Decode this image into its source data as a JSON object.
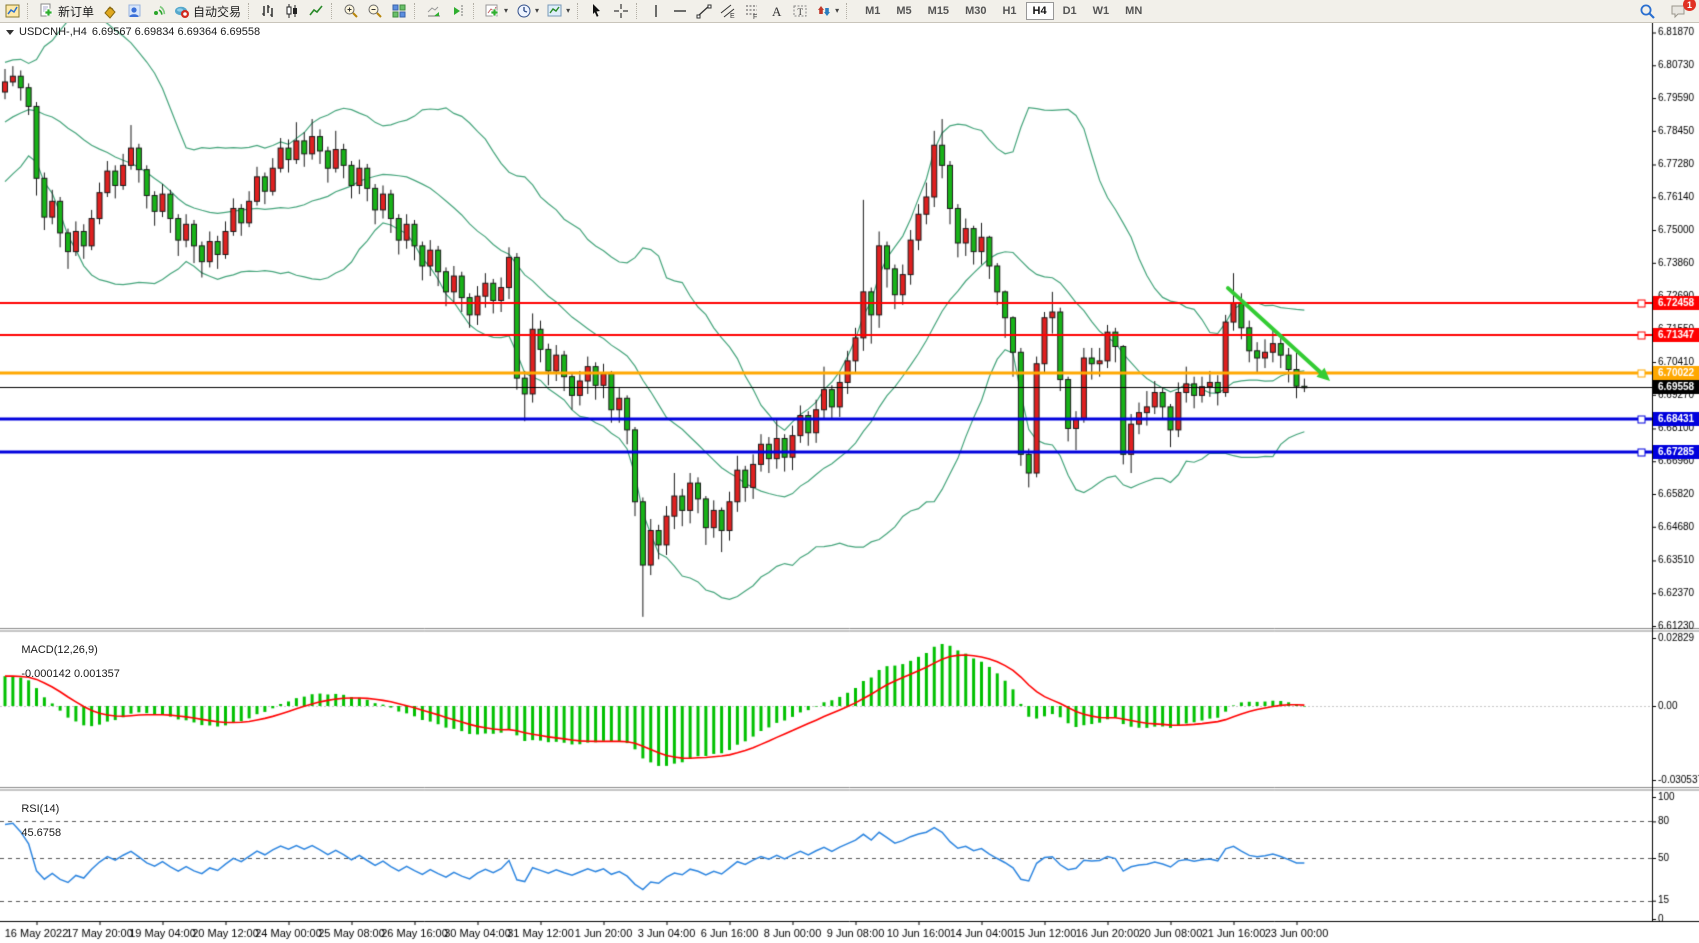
{
  "toolbar": {
    "new_order_label": "新订单",
    "autotrade_label": "自动交易",
    "timeframes": [
      "M1",
      "M5",
      "M15",
      "M30",
      "H1",
      "H4",
      "D1",
      "W1",
      "MN"
    ],
    "active_timeframe": "H4",
    "notification_count": "1",
    "icons": [
      "chart-window-icon",
      "new-order-icon",
      "styler-icon",
      "community-icon",
      "signals-icon",
      "autotrading-icon",
      "bar-chart-icon",
      "candlestick-icon",
      "line-chart-icon",
      "zoom-in-icon",
      "zoom-out-icon",
      "tile-windows-icon",
      "auto-scroll-icon",
      "chart-shift-icon",
      "indicators-icon",
      "periods-icon",
      "templates-icon",
      "cursor-icon",
      "crosshair-icon",
      "vertical-line-icon",
      "horizontal-line-icon",
      "trendline-icon",
      "equidistant-channel-icon",
      "fibonacci-icon",
      "text-icon",
      "text-label-icon",
      "arrows-icon",
      "search-icon",
      "chat-icon"
    ]
  },
  "chart_header": {
    "symbol_line": "USDCNH-,H4",
    "ohlc_line": "6.69567 6.69834 6.69364 6.69558"
  },
  "macd_panel": {
    "title": "MACD(12,26,9)",
    "values": "-0.000142 0.001357"
  },
  "rsi_panel": {
    "title": "RSI(14)",
    "value": "45.6758"
  },
  "chart_data": [
    {
      "type": "candlestick",
      "symbol": "USDCNH-",
      "timeframe": "H4",
      "ohlc_display": {
        "open": "6.69567",
        "high": "6.69834",
        "low": "6.69364",
        "close": "6.69558"
      },
      "ylim": [
        6.6123,
        6.8187
      ],
      "y_ticks": [
        "6.81870",
        "6.80730",
        "6.79590",
        "6.78450",
        "6.77280",
        "6.76140",
        "6.75000",
        "6.73860",
        "6.72690",
        "6.71550",
        "6.70410",
        "6.69270",
        "6.68100",
        "6.66960",
        "6.65820",
        "6.64680",
        "6.63510",
        "6.62370",
        "6.61230"
      ],
      "x_labels": [
        "16 May 2022",
        "17 May 20:00",
        "19 May 04:00",
        "20 May 12:00",
        "24 May 00:00",
        "25 May 08:00",
        "26 May 16:00",
        "30 May 04:00",
        "31 May 12:00",
        "1 Jun 20:00",
        "3 Jun 04:00",
        "6 Jun 16:00",
        "8 Jun 00:00",
        "9 Jun 08:00",
        "10 Jun 16:00",
        "14 Jun 04:00",
        "15 Jun 12:00",
        "16 Jun 20:00",
        "20 Jun 08:00",
        "21 Jun 16:00",
        "23 Jun 00:00"
      ],
      "bars_per_label": 8,
      "first_label_bar": 4,
      "colors": {
        "up": "#e02020",
        "down": "#18b318",
        "wick": "#1a1a1a"
      },
      "bollinger": {
        "period": 20,
        "deviation": 2,
        "color": "#46a57c"
      },
      "hlines": [
        {
          "price": 6.72458,
          "color": "#ff0000",
          "label": "6.72458",
          "width": 2
        },
        {
          "price": 6.71347,
          "color": "#ff0000",
          "label": "6.71347",
          "width": 2
        },
        {
          "price": 6.70022,
          "color": "#ffa800",
          "label": "6.70022",
          "width": 3
        },
        {
          "price": 6.68431,
          "color": "#0000dd",
          "label": "6.68431",
          "width": 3
        },
        {
          "price": 6.67285,
          "color": "#0000dd",
          "label": "6.67285",
          "width": 3
        }
      ],
      "current_price": {
        "value": 6.69558,
        "label": "6.69558",
        "color": "#000000"
      },
      "trend_arrow": {
        "from_bar": 155.3,
        "from_price": 6.7298,
        "to_bar": 167.7,
        "to_price": 6.6989,
        "color": "#33cc33",
        "width": 4
      },
      "prehistory_closes": [
        6.742,
        6.745,
        6.748,
        6.7455,
        6.751,
        6.7545,
        6.758,
        6.7555,
        6.761,
        6.7655,
        6.7625,
        6.768,
        6.7725,
        6.77,
        6.7755,
        6.78,
        6.7775,
        6.783,
        6.787,
        6.7845,
        6.789,
        6.7925,
        6.79,
        6.7945,
        6.797,
        6.795,
        6.7985,
        6.8,
        6.7975,
        6.798
      ],
      "candles": [
        [
          6.798,
          6.806,
          6.7955,
          6.8015
        ],
        [
          6.8015,
          6.807,
          6.8,
          6.8035
        ],
        [
          6.8035,
          6.8055,
          6.795,
          6.7995
        ],
        [
          6.7995,
          6.801,
          6.79,
          6.793
        ],
        [
          6.793,
          6.7945,
          6.762,
          6.768
        ],
        [
          6.768,
          6.77,
          6.75,
          6.7545
        ],
        [
          6.7545,
          6.764,
          6.752,
          6.76
        ],
        [
          6.76,
          6.7615,
          6.744,
          6.749
        ],
        [
          6.749,
          6.7505,
          6.7365,
          6.7425
        ],
        [
          6.7425,
          6.753,
          6.741,
          6.7495
        ],
        [
          6.7495,
          6.752,
          6.74,
          6.7445
        ],
        [
          6.7445,
          6.757,
          6.743,
          6.754
        ],
        [
          6.754,
          6.7665,
          6.752,
          6.763
        ],
        [
          6.763,
          6.774,
          6.7615,
          6.7705
        ],
        [
          6.7705,
          6.7725,
          6.761,
          6.7655
        ],
        [
          6.7655,
          6.7765,
          6.764,
          6.7725
        ],
        [
          6.7725,
          6.7865,
          6.771,
          6.7785
        ],
        [
          6.7785,
          6.78,
          6.7665,
          6.771
        ],
        [
          6.771,
          6.7725,
          6.7575,
          6.762
        ],
        [
          6.762,
          6.7635,
          6.7515,
          6.7565
        ],
        [
          6.7565,
          6.766,
          6.7545,
          6.7625
        ],
        [
          6.7625,
          6.764,
          6.749,
          6.754
        ],
        [
          6.754,
          6.7555,
          6.741,
          6.7465
        ],
        [
          6.7465,
          6.7555,
          6.744,
          6.752
        ],
        [
          6.752,
          6.7535,
          6.7385,
          6.7445
        ],
        [
          6.7445,
          6.746,
          6.7335,
          6.739
        ],
        [
          6.739,
          6.7495,
          6.737,
          6.746
        ],
        [
          6.746,
          6.748,
          6.7365,
          6.7415
        ],
        [
          6.7415,
          6.753,
          6.74,
          6.7495
        ],
        [
          6.7495,
          6.761,
          6.748,
          6.7575
        ],
        [
          6.7575,
          6.759,
          6.748,
          6.7525
        ],
        [
          6.7525,
          6.7635,
          6.751,
          6.76
        ],
        [
          6.76,
          6.772,
          6.7585,
          6.7685
        ],
        [
          6.7685,
          6.77,
          6.759,
          6.7635
        ],
        [
          6.7635,
          6.775,
          6.762,
          6.7715
        ],
        [
          6.7715,
          6.782,
          6.77,
          6.7785
        ],
        [
          6.7785,
          6.7815,
          6.77,
          6.7745
        ],
        [
          6.7745,
          6.7875,
          6.773,
          6.781
        ],
        [
          6.781,
          6.784,
          6.772,
          6.7765
        ],
        [
          6.7765,
          6.7886,
          6.7745,
          6.7825
        ],
        [
          6.7825,
          6.785,
          6.773,
          6.7775
        ],
        [
          6.7775,
          6.779,
          6.7665,
          6.7715
        ],
        [
          6.7715,
          6.7845,
          6.77,
          6.778
        ],
        [
          6.778,
          6.78,
          6.768,
          6.7725
        ],
        [
          6.7725,
          6.774,
          6.761,
          6.7655
        ],
        [
          6.7655,
          6.7745,
          6.7625,
          6.7715
        ],
        [
          6.7715,
          6.773,
          6.76,
          6.7645
        ],
        [
          6.7645,
          6.766,
          6.752,
          6.757
        ],
        [
          6.757,
          6.7655,
          6.754,
          6.7625
        ],
        [
          6.7625,
          6.764,
          6.749,
          6.754
        ],
        [
          6.754,
          6.7555,
          6.7415,
          6.7465
        ],
        [
          6.7465,
          6.7555,
          6.7435,
          6.752
        ],
        [
          6.752,
          6.7535,
          6.7395,
          6.7445
        ],
        [
          6.7445,
          6.746,
          6.7325,
          6.7375
        ],
        [
          6.7375,
          6.7465,
          6.734,
          6.743
        ],
        [
          6.743,
          6.7445,
          6.7305,
          6.7355
        ],
        [
          6.7355,
          6.737,
          6.7235,
          6.7285
        ],
        [
          6.7285,
          6.7375,
          6.725,
          6.734
        ],
        [
          6.734,
          6.7355,
          6.7215,
          6.7265
        ],
        [
          6.7265,
          6.728,
          6.716,
          6.7205
        ],
        [
          6.7205,
          6.7305,
          6.717,
          6.727
        ],
        [
          6.727,
          6.735,
          6.723,
          6.7315
        ],
        [
          6.7315,
          6.733,
          6.721,
          6.7255
        ],
        [
          6.7255,
          6.7335,
          6.7215,
          6.73
        ],
        [
          6.73,
          6.744,
          6.726,
          6.7405
        ],
        [
          6.7405,
          6.742,
          6.6945,
          6.6985
        ],
        [
          6.6985,
          6.701,
          6.6835,
          6.693
        ],
        [
          6.693,
          6.721,
          6.69,
          6.7155
        ],
        [
          6.7155,
          6.7185,
          6.704,
          6.7085
        ],
        [
          6.7085,
          6.7105,
          6.696,
          6.701
        ],
        [
          6.701,
          6.71,
          6.6975,
          6.7065
        ],
        [
          6.7065,
          6.708,
          6.694,
          6.699
        ],
        [
          6.699,
          6.7005,
          6.6875,
          6.6925
        ],
        [
          6.6925,
          6.701,
          6.689,
          6.6975
        ],
        [
          6.6975,
          6.706,
          6.693,
          6.7025
        ],
        [
          6.7025,
          6.704,
          6.691,
          6.696
        ],
        [
          6.696,
          6.7035,
          6.6915,
          6.7
        ],
        [
          6.7,
          6.701,
          6.683,
          6.6875
        ],
        [
          6.6875,
          6.695,
          6.683,
          6.6915
        ],
        [
          6.6915,
          6.6925,
          6.6755,
          6.6805
        ],
        [
          6.6805,
          6.6815,
          6.6505,
          6.6555
        ],
        [
          6.6555,
          6.657,
          6.6155,
          6.6335
        ],
        [
          6.6335,
          6.6495,
          6.63,
          6.6455
        ],
        [
          6.6455,
          6.6475,
          6.6355,
          6.6405
        ],
        [
          6.6405,
          6.654,
          6.637,
          6.6505
        ],
        [
          6.6505,
          6.6655,
          6.646,
          6.6575
        ],
        [
          6.6575,
          6.66,
          6.647,
          6.6525
        ],
        [
          6.6525,
          6.6655,
          6.648,
          6.662
        ],
        [
          6.662,
          6.664,
          6.6515,
          6.6565
        ],
        [
          6.6565,
          6.6575,
          6.6405,
          6.6465
        ],
        [
          6.6465,
          6.656,
          6.643,
          6.6525
        ],
        [
          6.6525,
          6.6535,
          6.638,
          6.6455
        ],
        [
          6.6455,
          6.659,
          6.642,
          6.6555
        ],
        [
          6.6555,
          6.6715,
          6.652,
          6.6665
        ],
        [
          6.6665,
          6.668,
          6.6555,
          6.6605
        ],
        [
          6.6605,
          6.672,
          6.6565,
          6.6685
        ],
        [
          6.6685,
          6.679,
          6.666,
          6.6755
        ],
        [
          6.6755,
          6.678,
          6.6655,
          6.6705
        ],
        [
          6.6705,
          6.6845,
          6.667,
          6.6775
        ],
        [
          6.6775,
          6.679,
          6.666,
          6.671
        ],
        [
          6.671,
          6.682,
          6.6665,
          6.6785
        ],
        [
          6.6785,
          6.689,
          6.676,
          6.6855
        ],
        [
          6.6855,
          6.687,
          6.675,
          6.6795
        ],
        [
          6.6795,
          6.691,
          6.676,
          6.6875
        ],
        [
          6.6875,
          6.7025,
          6.684,
          6.6945
        ],
        [
          6.6945,
          6.696,
          6.684,
          6.6885
        ],
        [
          6.6885,
          6.7005,
          6.685,
          6.697
        ],
        [
          6.697,
          6.708,
          6.693,
          6.7045
        ],
        [
          6.7045,
          6.716,
          6.7,
          6.7125
        ],
        [
          6.7125,
          6.7605,
          6.708,
          6.7285
        ],
        [
          6.7285,
          6.73,
          6.7105,
          6.7205
        ],
        [
          6.7205,
          6.7495,
          6.716,
          6.7445
        ],
        [
          6.7445,
          6.746,
          6.73,
          6.7365
        ],
        [
          6.7365,
          6.738,
          6.7225,
          6.7275
        ],
        [
          6.7275,
          6.738,
          6.724,
          6.7345
        ],
        [
          6.7345,
          6.75,
          6.731,
          6.7465
        ],
        [
          6.7465,
          6.759,
          6.743,
          6.7555
        ],
        [
          6.7555,
          6.7665,
          6.752,
          6.7615
        ],
        [
          6.7615,
          6.7845,
          6.758,
          6.7795
        ],
        [
          6.7795,
          6.7886,
          6.768,
          6.7725
        ],
        [
          6.7725,
          6.774,
          6.752,
          6.7575
        ],
        [
          6.7575,
          6.759,
          6.7405,
          6.7455
        ],
        [
          6.7455,
          6.754,
          6.741,
          6.7505
        ],
        [
          6.7505,
          6.7515,
          6.738,
          6.7425
        ],
        [
          6.7425,
          6.7525,
          6.738,
          6.7475
        ],
        [
          6.7475,
          6.748,
          6.733,
          6.7375
        ],
        [
          6.7375,
          6.7385,
          6.724,
          6.7285
        ],
        [
          6.7285,
          6.729,
          6.7125,
          6.7195
        ],
        [
          6.7195,
          6.72,
          6.699,
          6.7075
        ],
        [
          6.7075,
          6.709,
          6.668,
          6.672
        ],
        [
          6.672,
          6.674,
          6.6605,
          6.6655
        ],
        [
          6.6655,
          6.706,
          6.664,
          6.7035
        ],
        [
          6.7035,
          6.7215,
          6.7,
          6.7195
        ],
        [
          6.7195,
          6.7285,
          6.714,
          6.7215
        ],
        [
          6.7215,
          6.723,
          6.694,
          6.698
        ],
        [
          6.698,
          6.699,
          6.6765,
          6.681
        ],
        [
          6.681,
          6.687,
          6.6735,
          6.6845
        ],
        [
          6.6845,
          6.709,
          6.683,
          6.7055
        ],
        [
          6.7055,
          6.709,
          6.698,
          6.7035
        ],
        [
          6.7035,
          6.709,
          6.699,
          6.7045
        ],
        [
          6.7045,
          6.717,
          6.702,
          6.7145
        ],
        [
          6.7145,
          6.716,
          6.704,
          6.7095
        ],
        [
          6.7095,
          6.71,
          6.6685,
          6.672
        ],
        [
          6.672,
          6.686,
          6.6655,
          6.6825
        ],
        [
          6.6825,
          6.69,
          6.679,
          6.6865
        ],
        [
          6.6865,
          6.694,
          6.682,
          6.6885
        ],
        [
          6.6885,
          6.6975,
          6.686,
          6.6935
        ],
        [
          6.6935,
          6.695,
          6.684,
          6.6885
        ],
        [
          6.6885,
          6.6895,
          6.6745,
          6.6805
        ],
        [
          6.6805,
          6.697,
          6.678,
          6.6935
        ],
        [
          6.6935,
          6.7025,
          6.69,
          6.6965
        ],
        [
          6.6965,
          6.699,
          6.688,
          6.6925
        ],
        [
          6.6925,
          6.699,
          6.69,
          6.6955
        ],
        [
          6.6955,
          6.701,
          6.692,
          6.697
        ],
        [
          6.697,
          6.6995,
          6.689,
          6.6935
        ],
        [
          6.6935,
          6.7205,
          6.692,
          6.718
        ],
        [
          6.718,
          6.735,
          6.715,
          6.7245
        ],
        [
          6.7245,
          6.728,
          6.712,
          6.716
        ],
        [
          6.716,
          6.7185,
          6.704,
          6.708
        ],
        [
          6.708,
          6.711,
          6.7,
          6.7055
        ],
        [
          6.7055,
          6.712,
          6.702,
          6.7075
        ],
        [
          6.7075,
          6.7155,
          6.704,
          6.7105
        ],
        [
          6.7105,
          6.713,
          6.702,
          6.7065
        ],
        [
          6.7065,
          6.709,
          6.697,
          6.7015
        ],
        [
          6.7015,
          6.7085,
          6.6915,
          6.6957
        ],
        [
          6.69567,
          6.69834,
          6.69364,
          6.69558
        ]
      ]
    },
    {
      "type": "macd_histogram",
      "name": "MACD",
      "params": [
        12,
        26,
        9
      ],
      "display_values": "-0.000142 0.001357",
      "y_ticks": [
        "0.02829",
        "0.00",
        "-0.030537"
      ],
      "colors": {
        "histogram": "#00c000",
        "signal": "#ff0000"
      }
    },
    {
      "type": "rsi_line",
      "name": "RSI",
      "period": 14,
      "display_value": "45.6758",
      "levels": [
        80,
        50,
        15
      ],
      "y_ticks": [
        100,
        80,
        50,
        15,
        0
      ],
      "color": "#2e86e0"
    }
  ]
}
